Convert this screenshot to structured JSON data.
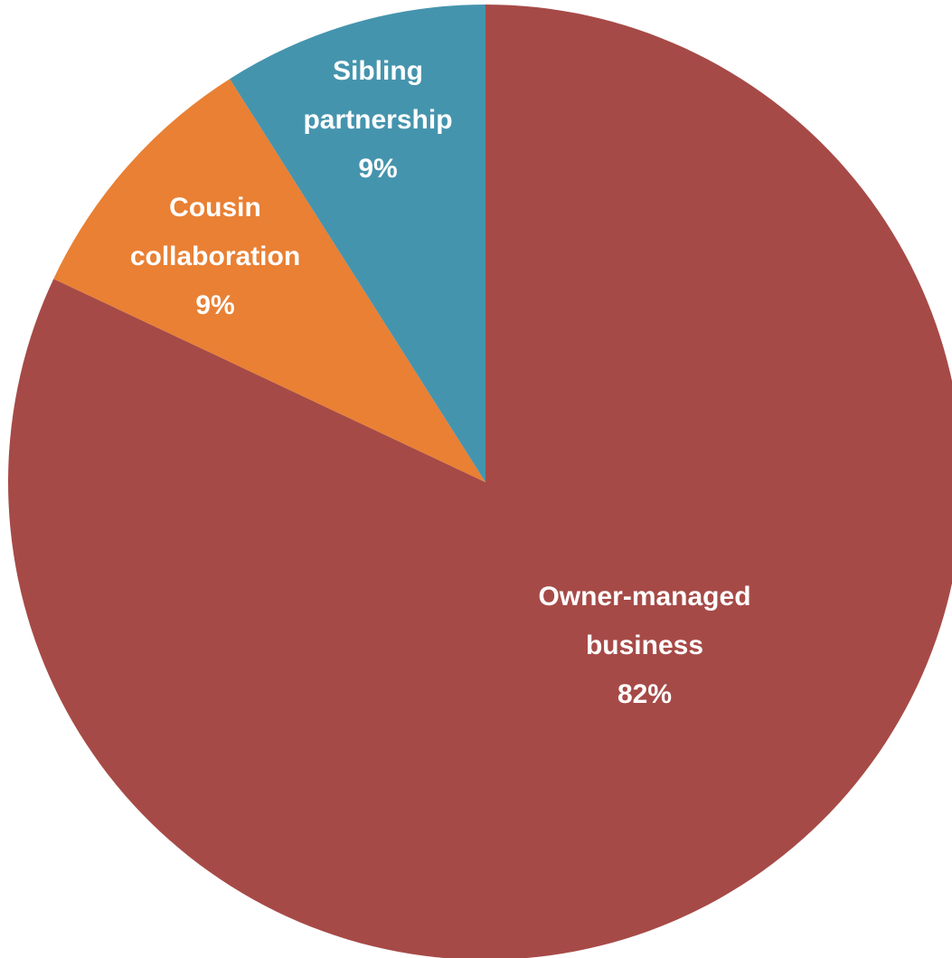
{
  "chart_data": {
    "type": "pie",
    "slices": [
      {
        "label_lines": [
          "Owner-managed",
          "business"
        ],
        "value": 82,
        "value_label": "82%",
        "color": "#A64A47"
      },
      {
        "label_lines": [
          "Cousin",
          "collaboration"
        ],
        "value": 9,
        "value_label": "9%",
        "color": "#E98034"
      },
      {
        "label_lines": [
          "Sibling",
          "partnership"
        ],
        "value": 9,
        "value_label": "9%",
        "color": "#4594AD"
      }
    ],
    "start": "12 o'clock",
    "direction": "clockwise",
    "legend": "none",
    "data_labels": "inside slices"
  }
}
